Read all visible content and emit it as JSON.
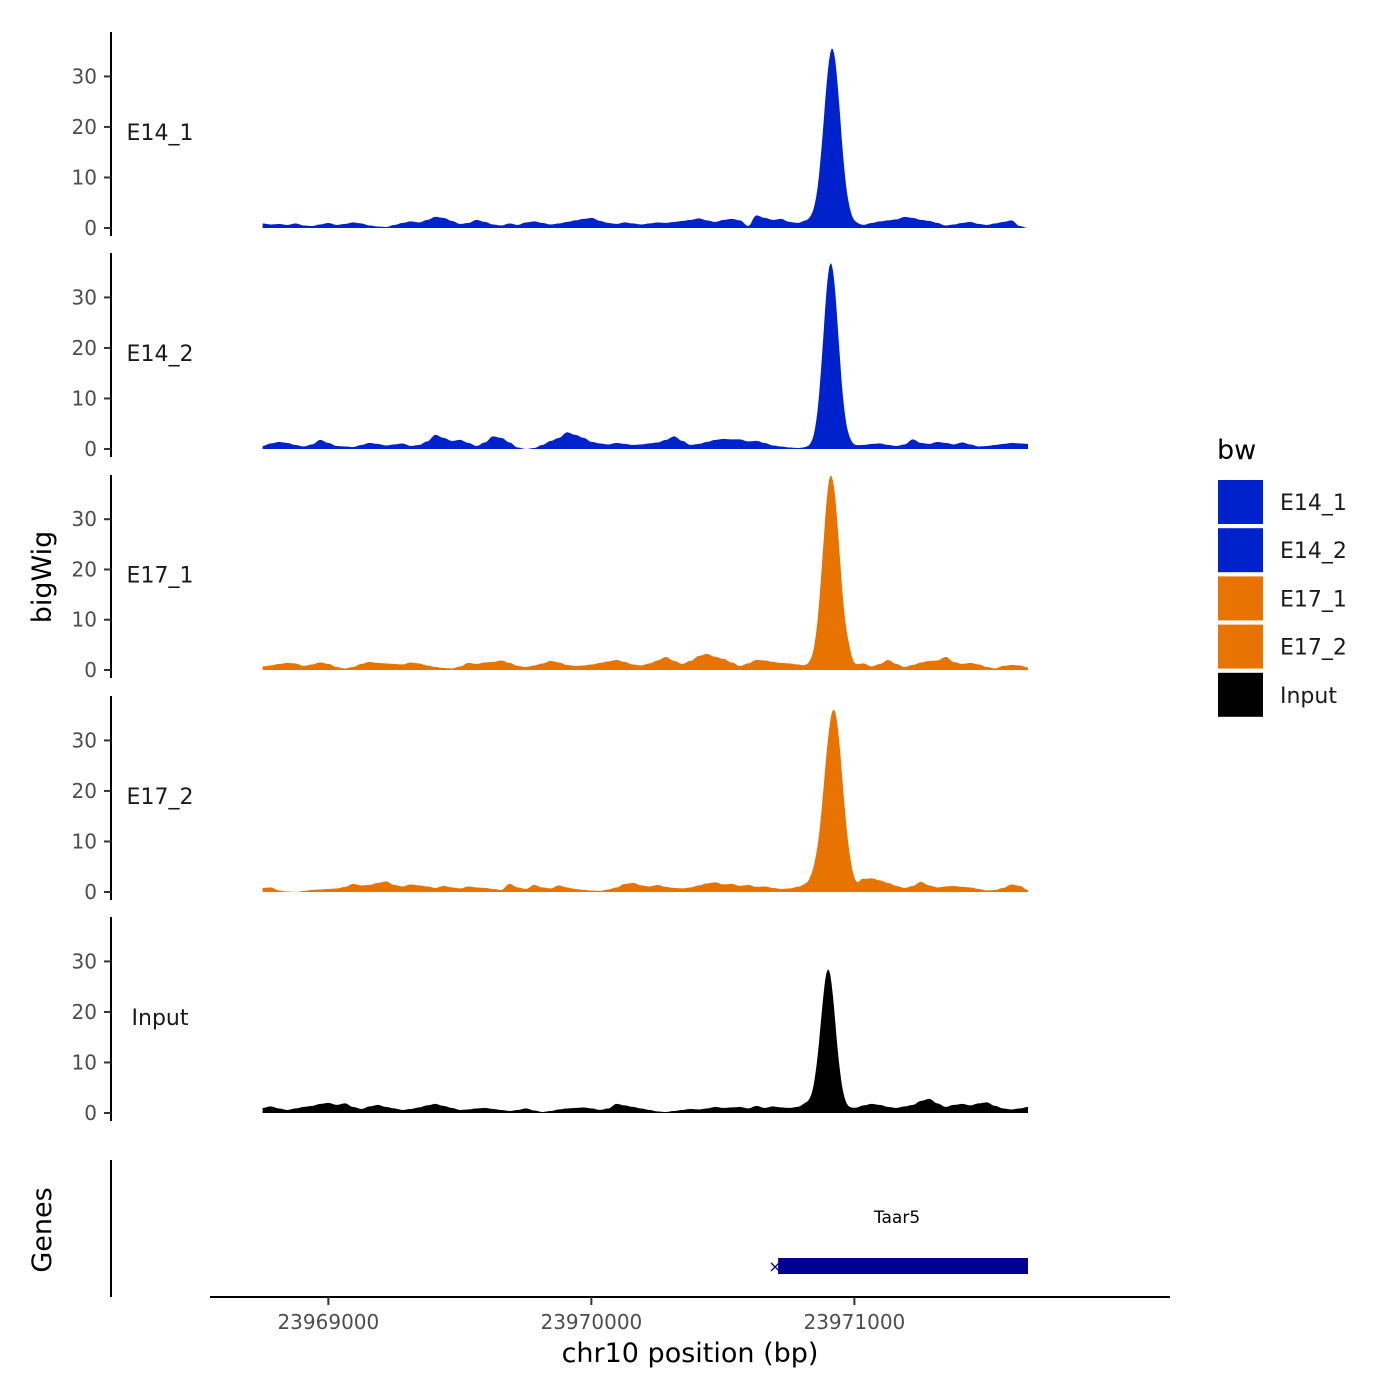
{
  "chart_data": {
    "type": "area",
    "ylabel": "bigWig",
    "xlabel": "chr10 position (bp)",
    "xlim": [
      23968550,
      23972200
    ],
    "data_x_range": [
      23968750,
      23971660
    ],
    "x_ticks": [
      23969000,
      23970000,
      23971000
    ],
    "x_tick_labels": [
      "23969000",
      "23970000",
      "23971000"
    ],
    "ylim": [
      0,
      38
    ],
    "y_ticks": [
      0,
      10,
      20,
      30
    ],
    "y_tick_labels": [
      "0",
      "10",
      "20",
      "30"
    ],
    "colors": {
      "E14": "#0022CC",
      "E17": "#E87300",
      "Input": "#000000",
      "gene": "#000090"
    },
    "series": [
      {
        "name": "E14_1",
        "color": "#0022CC",
        "peaks": [
          [
            23970915,
            34,
            30
          ]
        ],
        "values": [
          0.9,
          0.7,
          0.8,
          0.6,
          0.9,
          0.5,
          0.4,
          0.7,
          1.0,
          0.6,
          0.8,
          1.1,
          0.9,
          0.5,
          0.3,
          0.2,
          0.6,
          1.0,
          1.3,
          1.1,
          1.6,
          2.2,
          2.0,
          1.4,
          0.8,
          1.0,
          1.6,
          1.2,
          0.7,
          0.5,
          0.9,
          0.6,
          1.1,
          1.3,
          1.0,
          0.7,
          0.9,
          1.2,
          1.5,
          1.8,
          2.0,
          1.4,
          1.0,
          0.8,
          1.1,
          0.9,
          0.7,
          0.9,
          1.1,
          1.0,
          1.2,
          1.4,
          1.6,
          1.9,
          1.5,
          1.2,
          1.6,
          1.8,
          1.5,
          0.4,
          2.5,
          2.0,
          1.6,
          1.8,
          1.2,
          1.0,
          1.4,
          1.6,
          1.8,
          1.5,
          2.0,
          1.4,
          0.9,
          0.6,
          1.0,
          1.3,
          1.5,
          1.7,
          2.2,
          2.0,
          1.6,
          1.4,
          1.0,
          0.5,
          0.7,
          1.0,
          1.2,
          0.8,
          0.6,
          0.9,
          1.2,
          1.5,
          0.4,
          0.0
        ]
      },
      {
        "name": "E14_2",
        "color": "#0022CC",
        "peaks": [
          [
            23970910,
            36,
            28
          ]
        ],
        "values": [
          0.6,
          1.1,
          1.4,
          1.2,
          0.8,
          0.5,
          0.9,
          1.8,
          1.2,
          0.6,
          0.5,
          0.4,
          0.8,
          1.2,
          1.0,
          0.7,
          0.9,
          1.1,
          0.6,
          0.8,
          1.5,
          2.8,
          2.2,
          1.6,
          1.8,
          1.2,
          0.6,
          1.3,
          2.5,
          2.2,
          1.3,
          0.3,
          0.0,
          0.2,
          0.8,
          1.6,
          2.2,
          3.3,
          2.8,
          2.2,
          1.4,
          1.1,
          0.9,
          1.2,
          1.0,
          0.8,
          0.9,
          1.1,
          1.3,
          1.8,
          2.5,
          1.6,
          0.8,
          1.0,
          1.4,
          1.8,
          2.0,
          1.9,
          1.9,
          1.5,
          1.6,
          1.2,
          0.7,
          0.5,
          0.3,
          0.2,
          0.3,
          0.3,
          0.5,
          0.8,
          1.5,
          1.2,
          0.7,
          0.8,
          1.0,
          1.1,
          0.8,
          0.6,
          0.9,
          1.9,
          1.2,
          1.0,
          1.4,
          1.2,
          0.9,
          1.3,
          0.9,
          0.5,
          0.6,
          0.8,
          1.0,
          1.2,
          1.1,
          1.0
        ]
      },
      {
        "name": "E17_1",
        "color": "#E87300",
        "peaks": [
          [
            23970910,
            37,
            30
          ]
        ],
        "values": [
          0.7,
          0.9,
          1.2,
          1.4,
          1.3,
          0.8,
          1.1,
          1.5,
          1.2,
          0.6,
          0.3,
          0.6,
          1.2,
          1.6,
          1.4,
          1.3,
          1.2,
          1.1,
          1.5,
          1.3,
          0.9,
          0.6,
          0.4,
          0.3,
          0.7,
          1.4,
          1.2,
          1.5,
          1.6,
          1.9,
          1.4,
          0.8,
          0.6,
          0.9,
          1.3,
          1.8,
          1.5,
          1.0,
          0.8,
          0.9,
          1.1,
          1.4,
          1.7,
          2.0,
          1.6,
          1.1,
          0.9,
          1.3,
          1.9,
          2.6,
          1.8,
          1.2,
          1.8,
          2.8,
          3.2,
          2.6,
          2.2,
          1.5,
          0.8,
          1.3,
          2.0,
          1.9,
          1.6,
          1.4,
          1.3,
          1.1,
          0.8,
          0.6,
          0.9,
          1.7,
          3.5,
          3.0,
          1.0,
          1.3,
          0.7,
          1.2,
          2.0,
          1.2,
          0.6,
          1.0,
          1.5,
          1.8,
          1.9,
          2.6,
          1.6,
          1.2,
          1.4,
          1.1,
          0.6,
          0.3,
          0.8,
          1.0,
          0.9,
          0.5
        ]
      },
      {
        "name": "E17_2",
        "color": "#E87300",
        "peaks": [
          [
            23970920,
            35,
            34
          ]
        ],
        "values": [
          0.8,
          0.9,
          0.3,
          0.1,
          0.0,
          0.2,
          0.4,
          0.5,
          0.6,
          0.7,
          1.0,
          1.6,
          1.3,
          1.4,
          1.8,
          2.1,
          1.4,
          1.1,
          1.5,
          1.3,
          1.1,
          0.8,
          1.2,
          0.9,
          0.7,
          1.1,
          0.9,
          0.8,
          0.6,
          0.4,
          1.6,
          0.9,
          0.6,
          1.4,
          0.9,
          0.7,
          1.3,
          0.9,
          0.6,
          0.4,
          0.3,
          0.2,
          0.5,
          0.9,
          1.6,
          1.8,
          1.3,
          1.1,
          1.4,
          1.0,
          0.8,
          0.7,
          0.9,
          1.3,
          1.7,
          1.9,
          1.5,
          1.6,
          1.2,
          1.4,
          1.0,
          1.1,
          0.8,
          0.6,
          0.7,
          1.0,
          1.4,
          2.0,
          1.5,
          0.9,
          1.6,
          1.0,
          0.7,
          2.5,
          2.7,
          2.3,
          1.8,
          1.2,
          0.8,
          1.2,
          2.0,
          1.3,
          0.9,
          1.1,
          1.2,
          1.0,
          0.9,
          0.6,
          0.3,
          0.4,
          0.8,
          1.5,
          1.2,
          0.4
        ]
      },
      {
        "name": "Input",
        "color": "#000000",
        "peaks": [
          [
            23970900,
            27,
            28
          ]
        ],
        "values": [
          1.0,
          1.3,
          0.9,
          0.6,
          0.9,
          1.2,
          1.4,
          1.8,
          2.0,
          1.6,
          1.9,
          1.2,
          0.8,
          1.3,
          1.6,
          1.2,
          0.9,
          0.6,
          0.8,
          1.1,
          1.5,
          1.8,
          1.4,
          1.0,
          0.6,
          0.7,
          0.9,
          1.0,
          0.8,
          0.6,
          0.4,
          0.6,
          0.9,
          0.5,
          0.2,
          0.4,
          0.7,
          0.9,
          1.0,
          1.1,
          0.9,
          0.6,
          0.9,
          1.8,
          1.5,
          1.2,
          0.9,
          0.6,
          0.3,
          0.2,
          0.4,
          0.6,
          0.8,
          0.7,
          0.9,
          1.2,
          1.0,
          1.1,
          1.2,
          0.9,
          1.4,
          1.0,
          1.3,
          1.1,
          1.0,
          1.2,
          1.8,
          1.6,
          1.2,
          1.5,
          1.0,
          0.8,
          1.0,
          1.5,
          1.8,
          1.6,
          1.2,
          1.0,
          1.3,
          1.6,
          2.4,
          2.8,
          1.9,
          1.2,
          1.6,
          1.8,
          1.5,
          1.9,
          2.1,
          1.4,
          0.9,
          0.7,
          0.9,
          1.2
        ]
      }
    ],
    "legend": {
      "title": "bw",
      "position": "right",
      "entries": [
        {
          "label": "E14_1",
          "color": "#0022CC"
        },
        {
          "label": "E14_2",
          "color": "#0022CC"
        },
        {
          "label": "E17_1",
          "color": "#E87300"
        },
        {
          "label": "E17_2",
          "color": "#E87300"
        },
        {
          "label": "Input",
          "color": "#000000"
        }
      ]
    },
    "genes_track": {
      "label": "Genes",
      "genes": [
        {
          "name": "Taar5",
          "start": 23970710,
          "end": 23971660,
          "strand": "-"
        }
      ]
    }
  }
}
